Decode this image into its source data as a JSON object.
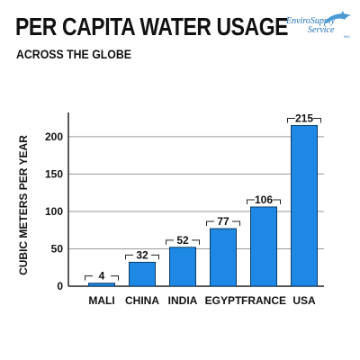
{
  "header": {
    "title": "PER CAPITA WATER USAGE",
    "subtitle": "ACROSS THE GLOBE",
    "logo": {
      "line1": "EnviroSupply",
      "line2": "Service",
      "line3": "INC",
      "icon": "dolphin-icon",
      "color": "#1d6fb8"
    }
  },
  "chart_data": {
    "type": "bar",
    "categories": [
      "MALI",
      "CHINA",
      "INDIA",
      "EGYPT",
      "FRANCE",
      "USA"
    ],
    "values": [
      4,
      32,
      52,
      77,
      106,
      215
    ],
    "value_labels": [
      "4",
      "32",
      "52",
      "77",
      "106",
      "215"
    ],
    "ylabel": "CUBIC METERS PER YEAR",
    "ylim": [
      0,
      230
    ],
    "yticks": [
      0,
      50,
      100,
      150,
      200
    ],
    "grid": true,
    "bar_color": "#1e88e5",
    "bar_border": "#0d3c66"
  }
}
